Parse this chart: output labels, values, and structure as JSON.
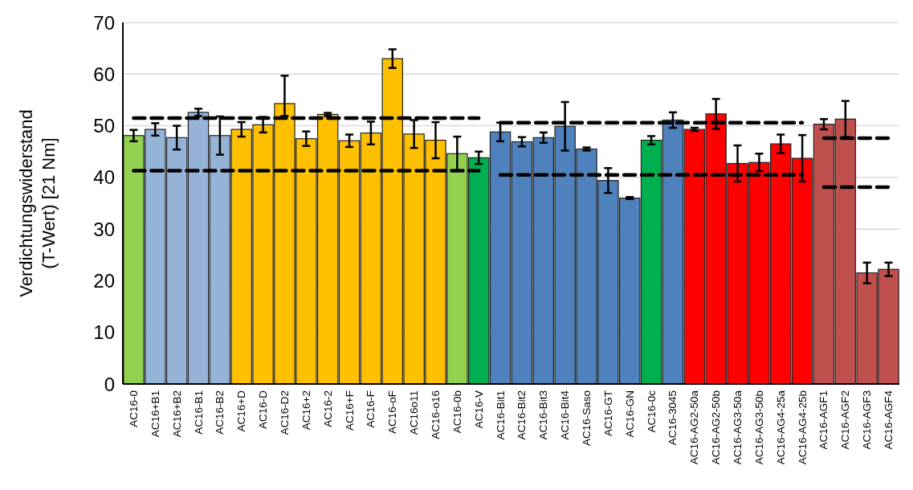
{
  "chart_data": {
    "type": "bar",
    "ylabel": "Verdichtungswiderstand\n(T-Wert) [21 Nm]",
    "ylim": [
      0,
      70
    ],
    "yticks": [
      0,
      10,
      20,
      30,
      40,
      50,
      60,
      70
    ],
    "grid": "y",
    "categories": [
      "AC16-0",
      "AC16+B1",
      "AC16+B2",
      "AC16-B1",
      "AC16-B2",
      "AC16+D",
      "AC16-D",
      "AC16-D2",
      "AC16+2",
      "AC16-2",
      "AC16+F",
      "AC16-F",
      "AC16-oF",
      "AC16o11",
      "AC16-o16",
      "AC16-0b",
      "AC16-V",
      "AC16-Bit1",
      "AC16-Bit2",
      "AC16-Bit3",
      "AC16-Bit4",
      "AC16-Saso",
      "AC16-GT",
      "AC16-GN",
      "AC16-0c",
      "AC16-3045",
      "AC16-AG2-50a",
      "AC16-AG2-50b",
      "AC16-AG3-50a",
      "AC16-AG3-50b",
      "AC16-AG4-25a",
      "AC16-AG4-25b",
      "AC16-AGF1",
      "AC16-AGF2",
      "AC16-AGF3",
      "AC16-AGF4"
    ],
    "series": [
      {
        "values": [
          48.1,
          49.3,
          47.7,
          52.6,
          48.1,
          49.3,
          50.2,
          54.3,
          47.5,
          52.2,
          47.1,
          48.6,
          63.0,
          48.4,
          47.2,
          44.6,
          43.8,
          48.8,
          46.9,
          47.7,
          49.9,
          45.5,
          39.4,
          36.0,
          47.2,
          51.1,
          49.3,
          52.3,
          42.7,
          42.9,
          46.5,
          43.7,
          50.3,
          51.3,
          21.5,
          22.2
        ],
        "errors": [
          1.1,
          1.2,
          2.3,
          0.7,
          3.7,
          1.4,
          1.5,
          [
            51.9,
            59.7
          ],
          1.4,
          0.3,
          1.2,
          2.2,
          1.8,
          2.7,
          3.5,
          3.3,
          1.2,
          1.8,
          0.9,
          1.0,
          4.7,
          0.3,
          2.4,
          0.2,
          0.8,
          1.5,
          0.3,
          2.9,
          3.5,
          1.7,
          1.8,
          4.5,
          1.0,
          3.5,
          2.0,
          1.3
        ],
        "colors": [
          "#92d050",
          "#95b3d7",
          "#95b3d7",
          "#95b3d7",
          "#95b3d7",
          "#ffc000",
          "#ffc000",
          "#ffc000",
          "#ffc000",
          "#ffc000",
          "#ffc000",
          "#ffc000",
          "#ffc000",
          "#ffc000",
          "#ffc000",
          "#92d050",
          "#00b050",
          "#4f81bd",
          "#4f81bd",
          "#4f81bd",
          "#4f81bd",
          "#4f81bd",
          "#4f81bd",
          "#4f81bd",
          "#00b050",
          "#4f81bd",
          "#ff0000",
          "#ff0000",
          "#ff0000",
          "#ff0000",
          "#ff0000",
          "#ff0000",
          "#c0504d",
          "#c0504d",
          "#c0504d",
          "#c0504d"
        ]
      },
      {
        "type": "line",
        "color": "#000000",
        "line_style": "dashed",
        "marker": "none",
        "values": [
          51.5,
          51.5,
          51.5,
          51.5,
          51.5,
          51.5,
          51.5,
          51.5,
          51.5,
          51.5,
          51.5,
          51.5,
          51.5,
          51.5,
          51.5,
          51.5,
          51.5,
          null,
          null,
          null,
          null,
          null,
          null,
          null,
          null,
          null,
          null,
          null,
          null,
          null,
          null,
          null,
          null,
          null,
          null,
          null
        ]
      },
      {
        "type": "line",
        "color": "#000000",
        "line_style": "dashed",
        "marker": "none",
        "values": [
          41.3,
          41.3,
          41.3,
          41.3,
          41.3,
          41.3,
          41.3,
          41.3,
          41.3,
          41.3,
          41.3,
          41.3,
          41.3,
          41.3,
          41.3,
          41.3,
          41.3,
          null,
          null,
          null,
          null,
          null,
          null,
          null,
          null,
          null,
          null,
          null,
          null,
          null,
          null,
          null,
          null,
          null,
          null,
          null
        ]
      },
      {
        "type": "line",
        "color": "#000000",
        "line_style": "dashed",
        "marker": "none",
        "values": [
          null,
          null,
          null,
          null,
          null,
          null,
          null,
          null,
          null,
          null,
          null,
          null,
          null,
          null,
          null,
          null,
          null,
          50.6,
          50.6,
          50.6,
          50.6,
          50.6,
          50.6,
          50.6,
          50.6,
          50.6,
          50.6,
          50.6,
          50.6,
          50.6,
          50.6,
          50.6,
          null,
          null,
          null,
          null
        ]
      },
      {
        "type": "line",
        "color": "#000000",
        "line_style": "dashed",
        "marker": "none",
        "values": [
          null,
          null,
          null,
          null,
          null,
          null,
          null,
          null,
          null,
          null,
          null,
          null,
          null,
          null,
          null,
          null,
          null,
          40.5,
          40.5,
          40.5,
          40.5,
          40.5,
          40.5,
          40.5,
          40.5,
          40.5,
          40.5,
          40.5,
          40.5,
          40.5,
          40.5,
          40.5,
          null,
          null,
          null,
          null
        ]
      },
      {
        "type": "line",
        "color": "#000000",
        "line_style": "dashed",
        "marker": "none",
        "values": [
          null,
          null,
          null,
          null,
          null,
          null,
          null,
          null,
          null,
          null,
          null,
          null,
          null,
          null,
          null,
          null,
          null,
          null,
          null,
          null,
          null,
          null,
          null,
          null,
          null,
          null,
          null,
          null,
          null,
          null,
          null,
          null,
          47.6,
          47.6,
          47.6,
          47.6
        ]
      },
      {
        "type": "line",
        "color": "#000000",
        "line_style": "dashed",
        "marker": "none",
        "values": [
          null,
          null,
          null,
          null,
          null,
          null,
          null,
          null,
          null,
          null,
          null,
          null,
          null,
          null,
          null,
          null,
          null,
          null,
          null,
          null,
          null,
          null,
          null,
          null,
          null,
          null,
          null,
          null,
          null,
          null,
          null,
          null,
          38.1,
          38.1,
          38.1,
          38.1
        ]
      }
    ]
  }
}
